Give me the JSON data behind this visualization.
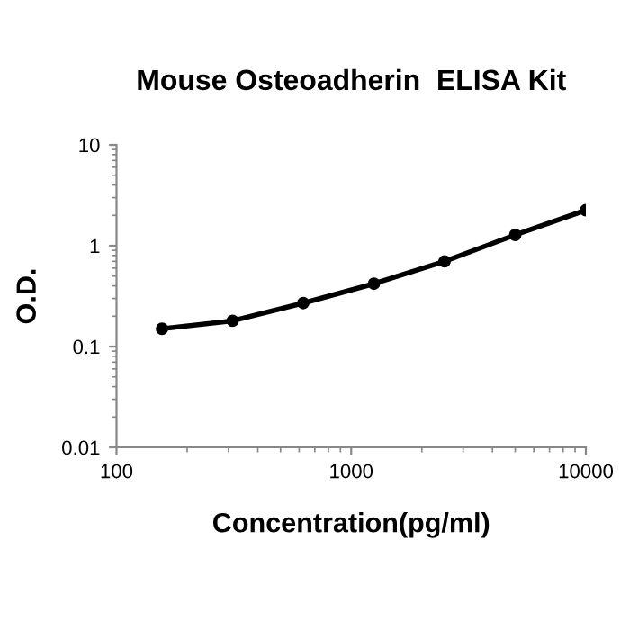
{
  "chart_data": {
    "type": "line",
    "title": "Mouse Osteoadherin  ELISA Kit",
    "xlabel": "Concentration(pg/ml)",
    "ylabel": "O.D.",
    "x": [
      156.25,
      312.5,
      625,
      1250,
      2500,
      5000,
      10000
    ],
    "series": [
      {
        "color": "#000000",
        "values": [
          0.15,
          0.18,
          0.27,
          0.42,
          0.7,
          1.28,
          2.25
        ]
      }
    ],
    "log": "xy",
    "xlim": [
      100,
      10000
    ],
    "xticks": [
      100,
      1000,
      10000
    ],
    "ylim": [
      0.01,
      10
    ],
    "yticks": [
      0.01,
      0.1,
      1,
      10
    ],
    "marker": "circle",
    "line_style": "solid",
    "grid": false,
    "legend": false
  }
}
